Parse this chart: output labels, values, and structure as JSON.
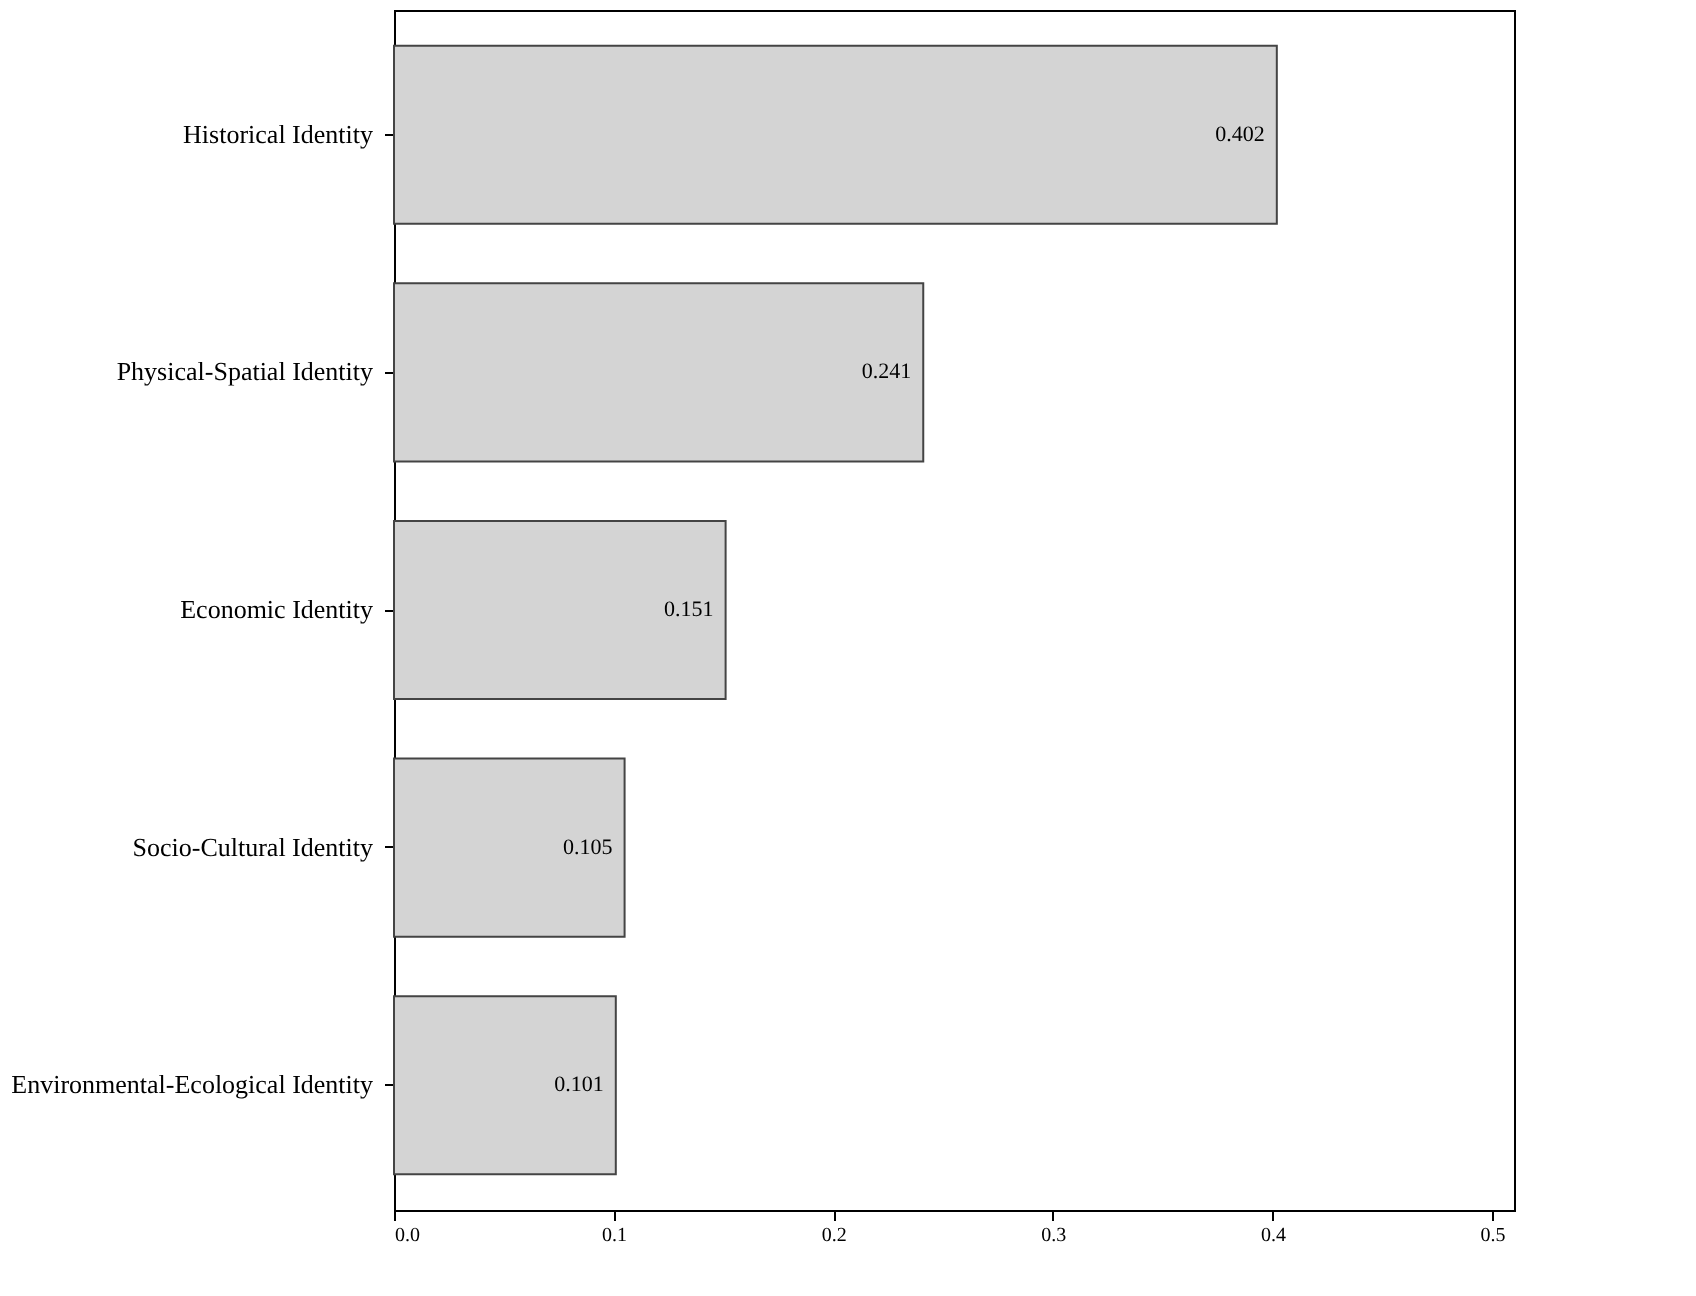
{
  "chart_data": {
    "type": "bar",
    "orientation": "horizontal",
    "categories": [
      "Historical Identity",
      "Physical-Spatial Identity",
      "Economic Identity",
      "Socio-Cultural Identity",
      "Environmental-Ecological Identity"
    ],
    "values": [
      0.402,
      0.241,
      0.151,
      0.105,
      0.101
    ],
    "color": "#d4d4d4",
    "xlim": [
      0,
      0.51
    ],
    "xticks": [
      {
        "value": 0,
        "label": "0.0"
      },
      0.1,
      0.2,
      0.3,
      0.4,
      0.5
    ],
    "data_labels": true,
    "grid": false
  }
}
